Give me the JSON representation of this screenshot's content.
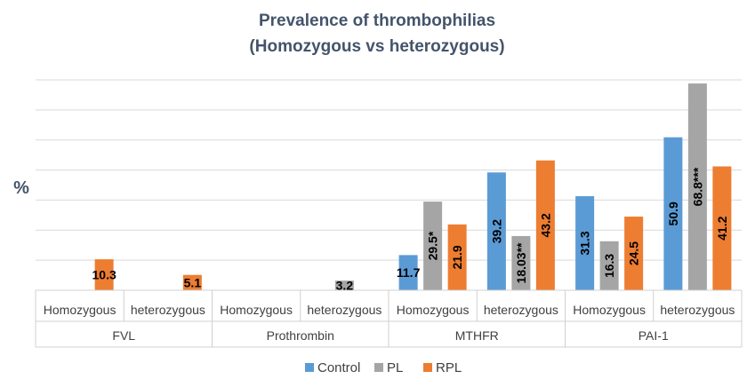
{
  "chart_data": {
    "type": "bar",
    "title": "Prevalence of thrombophilias",
    "subtitle": "(Homozygous vs heterozygous)",
    "ylabel": "%",
    "xlabel": "",
    "ylim": [
      0,
      70
    ],
    "grid": true,
    "legend_position": "bottom",
    "groups": [
      {
        "name": "FVL",
        "categories": [
          "Homozygous",
          "heterozygous"
        ]
      },
      {
        "name": "Prothrombin",
        "categories": [
          "Homozygous",
          "heterozygous"
        ]
      },
      {
        "name": "MTHFR",
        "categories": [
          "Homozygous",
          "heterozygous"
        ]
      },
      {
        "name": "PAI-1",
        "categories": [
          "Homozygous",
          "heterozygous"
        ]
      }
    ],
    "series": [
      {
        "name": "Control",
        "color": "#5b9bd5",
        "values": [
          null,
          null,
          null,
          null,
          11.7,
          39.2,
          31.3,
          50.9
        ],
        "labels": [
          "",
          "",
          "",
          "",
          "11.7",
          "39.2",
          "31.3",
          "50.9"
        ]
      },
      {
        "name": "PL",
        "color": "#a5a5a5",
        "values": [
          null,
          null,
          null,
          3.2,
          29.5,
          18.03,
          16.3,
          68.8
        ],
        "labels": [
          "",
          "",
          "",
          "3.2",
          "29.5*",
          "18.03**",
          "16.3",
          "68.8***"
        ]
      },
      {
        "name": "RPL",
        "color": "#ed7d31",
        "values": [
          10.3,
          5.1,
          null,
          null,
          21.9,
          43.2,
          24.5,
          41.2
        ],
        "labels": [
          "10.3",
          "5.1",
          "",
          "",
          "21.9",
          "43.2",
          "24.5",
          "41.2"
        ]
      }
    ]
  }
}
